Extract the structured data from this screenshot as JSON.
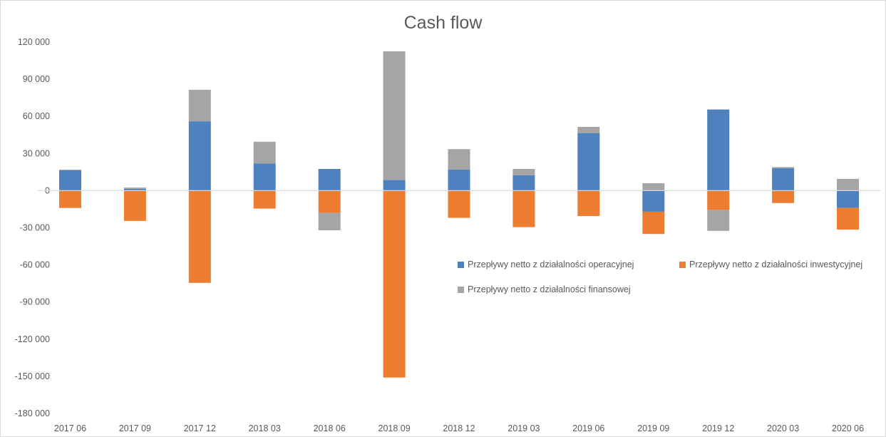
{
  "chart_data": {
    "type": "bar",
    "stacked": true,
    "title": "Cash flow",
    "categories": [
      "2017 06",
      "2017 09",
      "2017 12",
      "2018 03",
      "2018 06",
      "2018 09",
      "2018 12",
      "2019 03",
      "2019 06",
      "2019 09",
      "2019 12",
      "2020 03",
      "2020 06"
    ],
    "series": [
      {
        "name": "Przepływy netto z działalności operacyjnej",
        "color": "#4e81bd",
        "values": [
          16500,
          1500,
          56000,
          22000,
          17500,
          8500,
          17000,
          12500,
          46500,
          -17000,
          65500,
          18000,
          -14000
        ]
      },
      {
        "name": "Przepływy netto z działalności inwestycyjnej",
        "color": "#ed7d31",
        "values": [
          -14000,
          -24500,
          -74500,
          -14500,
          -18000,
          -151000,
          -22000,
          -29500,
          -20500,
          -18000,
          -15500,
          -10000,
          -17500
        ]
      },
      {
        "name": "Przepływy netto z działalności finansowej",
        "color": "#a5a5a5",
        "values": [
          500,
          1000,
          25500,
          17500,
          -14000,
          104000,
          16500,
          5000,
          5000,
          6000,
          -17000,
          1000,
          9500
        ]
      }
    ],
    "ylim": [
      -180000,
      120000
    ],
    "yticks": [
      120000,
      90000,
      60000,
      30000,
      0,
      -30000,
      -60000,
      -90000,
      -120000,
      -150000,
      -180000
    ],
    "ytick_labels": [
      "120 000",
      "90 000",
      "60 000",
      "30 000",
      "0",
      "-30 000",
      "-60 000",
      "-90 000",
      "-120 000",
      "-150 000",
      "-180 000"
    ],
    "grid": false,
    "legend_position": "right-middle"
  }
}
